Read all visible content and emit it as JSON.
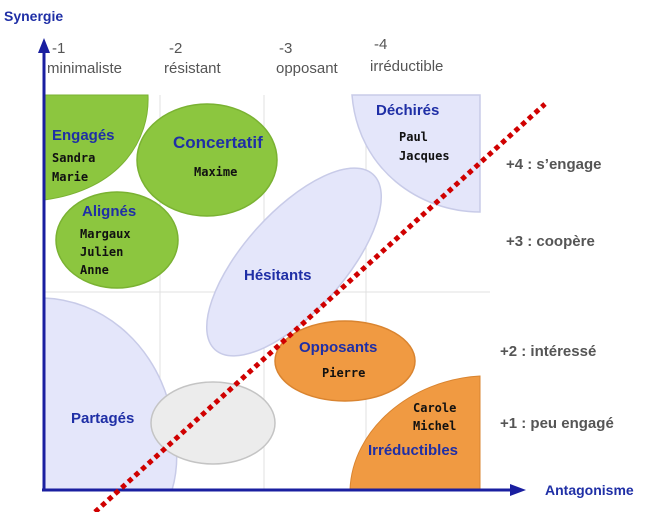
{
  "axes": {
    "y_title": "Synergie",
    "x_title": "Antagonisme"
  },
  "columns": [
    {
      "number": "-1",
      "name": "minimaliste"
    },
    {
      "number": "-2",
      "name": "résistant"
    },
    {
      "number": "-3",
      "name": "opposant"
    },
    {
      "number": "-4",
      "name": "irréductible"
    }
  ],
  "rows": [
    {
      "label": "+4 : s’engage"
    },
    {
      "label": "+3 : coopère"
    },
    {
      "label": "+2 : intéressé"
    },
    {
      "label": "+1 : peu engagé"
    }
  ],
  "groups": {
    "engages": {
      "title": "Engagés",
      "members": [
        "Sandra",
        "Marie"
      ]
    },
    "concertatif": {
      "title": "Concertatif",
      "members": [
        "Maxime"
      ]
    },
    "alignes": {
      "title": "Alignés",
      "members": [
        "Margaux",
        "Julien",
        "Anne"
      ]
    },
    "dechires": {
      "title": "Déchirés",
      "members": [
        "Paul",
        "Jacques"
      ]
    },
    "hesitants": {
      "title": "Hésitants"
    },
    "opposants": {
      "title": "Opposants",
      "members": [
        "Pierre"
      ]
    },
    "partages": {
      "title": "Partagés"
    },
    "irreductibles": {
      "title": "Irréductibles",
      "members": [
        "Carole",
        "Michel"
      ]
    }
  },
  "colors": {
    "axis": "#1a1fa0",
    "green": "#8cc63f",
    "lavender": "#e4e6fa",
    "orange": "#f09a42",
    "grey": "#ececec",
    "divider": "#d00000"
  }
}
